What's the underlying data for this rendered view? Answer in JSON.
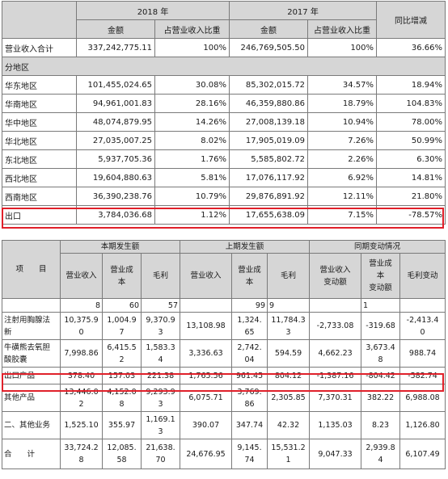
{
  "top_table": {
    "header": {
      "year_2018": "2018 年",
      "year_2017": "2017 年",
      "yoy": "同比增减",
      "amount": "金额",
      "ratio": "占营业收入比重"
    },
    "total_row": {
      "label": "营业收入合计",
      "amt2018": "337,242,775.11",
      "pct2018": "100%",
      "amt2017": "246,769,505.50",
      "pct2017": "100%",
      "yoy": "36.66%"
    },
    "section_label": "分地区",
    "rows": [
      {
        "label": "华东地区",
        "amt2018": "101,455,024.65",
        "pct2018": "30.08%",
        "amt2017": "85,302,015.72",
        "pct2017": "34.57%",
        "yoy": "18.94%"
      },
      {
        "label": "华南地区",
        "amt2018": "94,961,001.83",
        "pct2018": "28.16%",
        "amt2017": "46,359,880.86",
        "pct2017": "18.79%",
        "yoy": "104.83%"
      },
      {
        "label": "华中地区",
        "amt2018": "48,074,879.95",
        "pct2018": "14.26%",
        "amt2017": "27,008,139.18",
        "pct2017": "10.94%",
        "yoy": "78.00%"
      },
      {
        "label": "华北地区",
        "amt2018": "27,035,007.25",
        "pct2018": "8.02%",
        "amt2017": "17,905,019.09",
        "pct2017": "7.26%",
        "yoy": "50.99%"
      },
      {
        "label": "东北地区",
        "amt2018": "5,937,705.36",
        "pct2018": "1.76%",
        "amt2017": "5,585,802.72",
        "pct2017": "2.26%",
        "yoy": "6.30%"
      },
      {
        "label": "西北地区",
        "amt2018": "19,604,880.63",
        "pct2018": "5.81%",
        "amt2017": "17,076,117.92",
        "pct2017": "6.92%",
        "yoy": "14.81%"
      },
      {
        "label": "西南地区",
        "amt2018": "36,390,238.76",
        "pct2018": "10.79%",
        "amt2017": "29,876,891.92",
        "pct2017": "12.11%",
        "yoy": "21.80%"
      },
      {
        "label": "出口",
        "amt2018": "3,784,036.68",
        "pct2018": "1.12%",
        "amt2017": "17,655,638.09",
        "pct2017": "7.15%",
        "yoy": "-78.57%"
      }
    ]
  },
  "bottom_table": {
    "header": {
      "item": "项　　目",
      "current": "本期发生额",
      "previous": "上期发生额",
      "change": "同期变动情况",
      "rev": "营业收入",
      "cost": "营业成\n本",
      "gross": "毛利",
      "rev_change": "营业收入\n变动额",
      "cost_change": "营业成\n本\n变动额",
      "gross_change": "毛利变动"
    },
    "count_row": {
      "c_rev": "8",
      "c_cost": "60",
      "c_gross": "57",
      "p_rev": "",
      "p_cost": "99",
      "p_gross": "9",
      "ch_rev": "",
      "ch_cost": "1",
      "ch_gross": ""
    },
    "rows": [
      {
        "label": "注射用胸腺法\n新",
        "c_rev": "10,375.9\n0",
        "c_cost": "1,004.9\n7",
        "c_gross": "9,370.9\n3",
        "p_rev": "13,108.98",
        "p_cost": "1,324.\n65",
        "p_gross": "11,784.3\n3",
        "ch_rev": "-2,733.08",
        "ch_cost": "-319.68",
        "ch_gross": "-2,413.4\n0"
      },
      {
        "label": "牛磺熊去氧胆\n酸胶囊",
        "c_rev": "7,998.86",
        "c_cost": "6,415.5\n2",
        "c_gross": "1,583.3\n4",
        "p_rev": "3,336.63",
        "p_cost": "2,742.\n04",
        "p_gross": "594.59",
        "ch_rev": "4,662.23",
        "ch_cost": "3,673.4\n8",
        "ch_gross": "988.74"
      },
      {
        "label": "出口产品",
        "c_rev": "378.40",
        "c_cost": "157.03",
        "c_gross": "221.38",
        "p_rev": "1,765.56",
        "p_cost": "961.45",
        "p_gross": "804.12",
        "ch_rev": "-1,387.16",
        "ch_cost": "-804.42",
        "ch_gross": "-582.74"
      },
      {
        "label": "其他产品",
        "c_rev": "13,446.0\n2",
        "c_cost": "4,152.0\n8",
        "c_gross": "9,293.9\n3",
        "p_rev": "6,075.71",
        "p_cost": "3,769.\n86",
        "p_gross": "2,305.85",
        "ch_rev": "7,370.31",
        "ch_cost": "382.22",
        "ch_gross": "6,988.08"
      },
      {
        "label": "二、其他业务",
        "c_rev": "1,525.10",
        "c_cost": "355.97",
        "c_gross": "1,169.1\n3",
        "p_rev": "390.07",
        "p_cost": "347.74",
        "p_gross": "42.32",
        "ch_rev": "1,135.03",
        "ch_cost": "8.23",
        "ch_gross": "1,126.80"
      },
      {
        "label": "合　　计",
        "c_rev": "33,724.2\n8",
        "c_cost": "12,085.\n58",
        "c_gross": "21,638.\n70",
        "p_rev": "24,676.95",
        "p_cost": "9,145.\n74",
        "p_gross": "15,531.2\n1",
        "ch_rev": "9,047.33",
        "ch_cost": "2,939.8\n4",
        "ch_gross": "6,107.49"
      }
    ]
  },
  "colors": {
    "header_bg": "#d6d6d6",
    "highlight_border": "#e0202a",
    "grid": "#7a7a7a"
  }
}
